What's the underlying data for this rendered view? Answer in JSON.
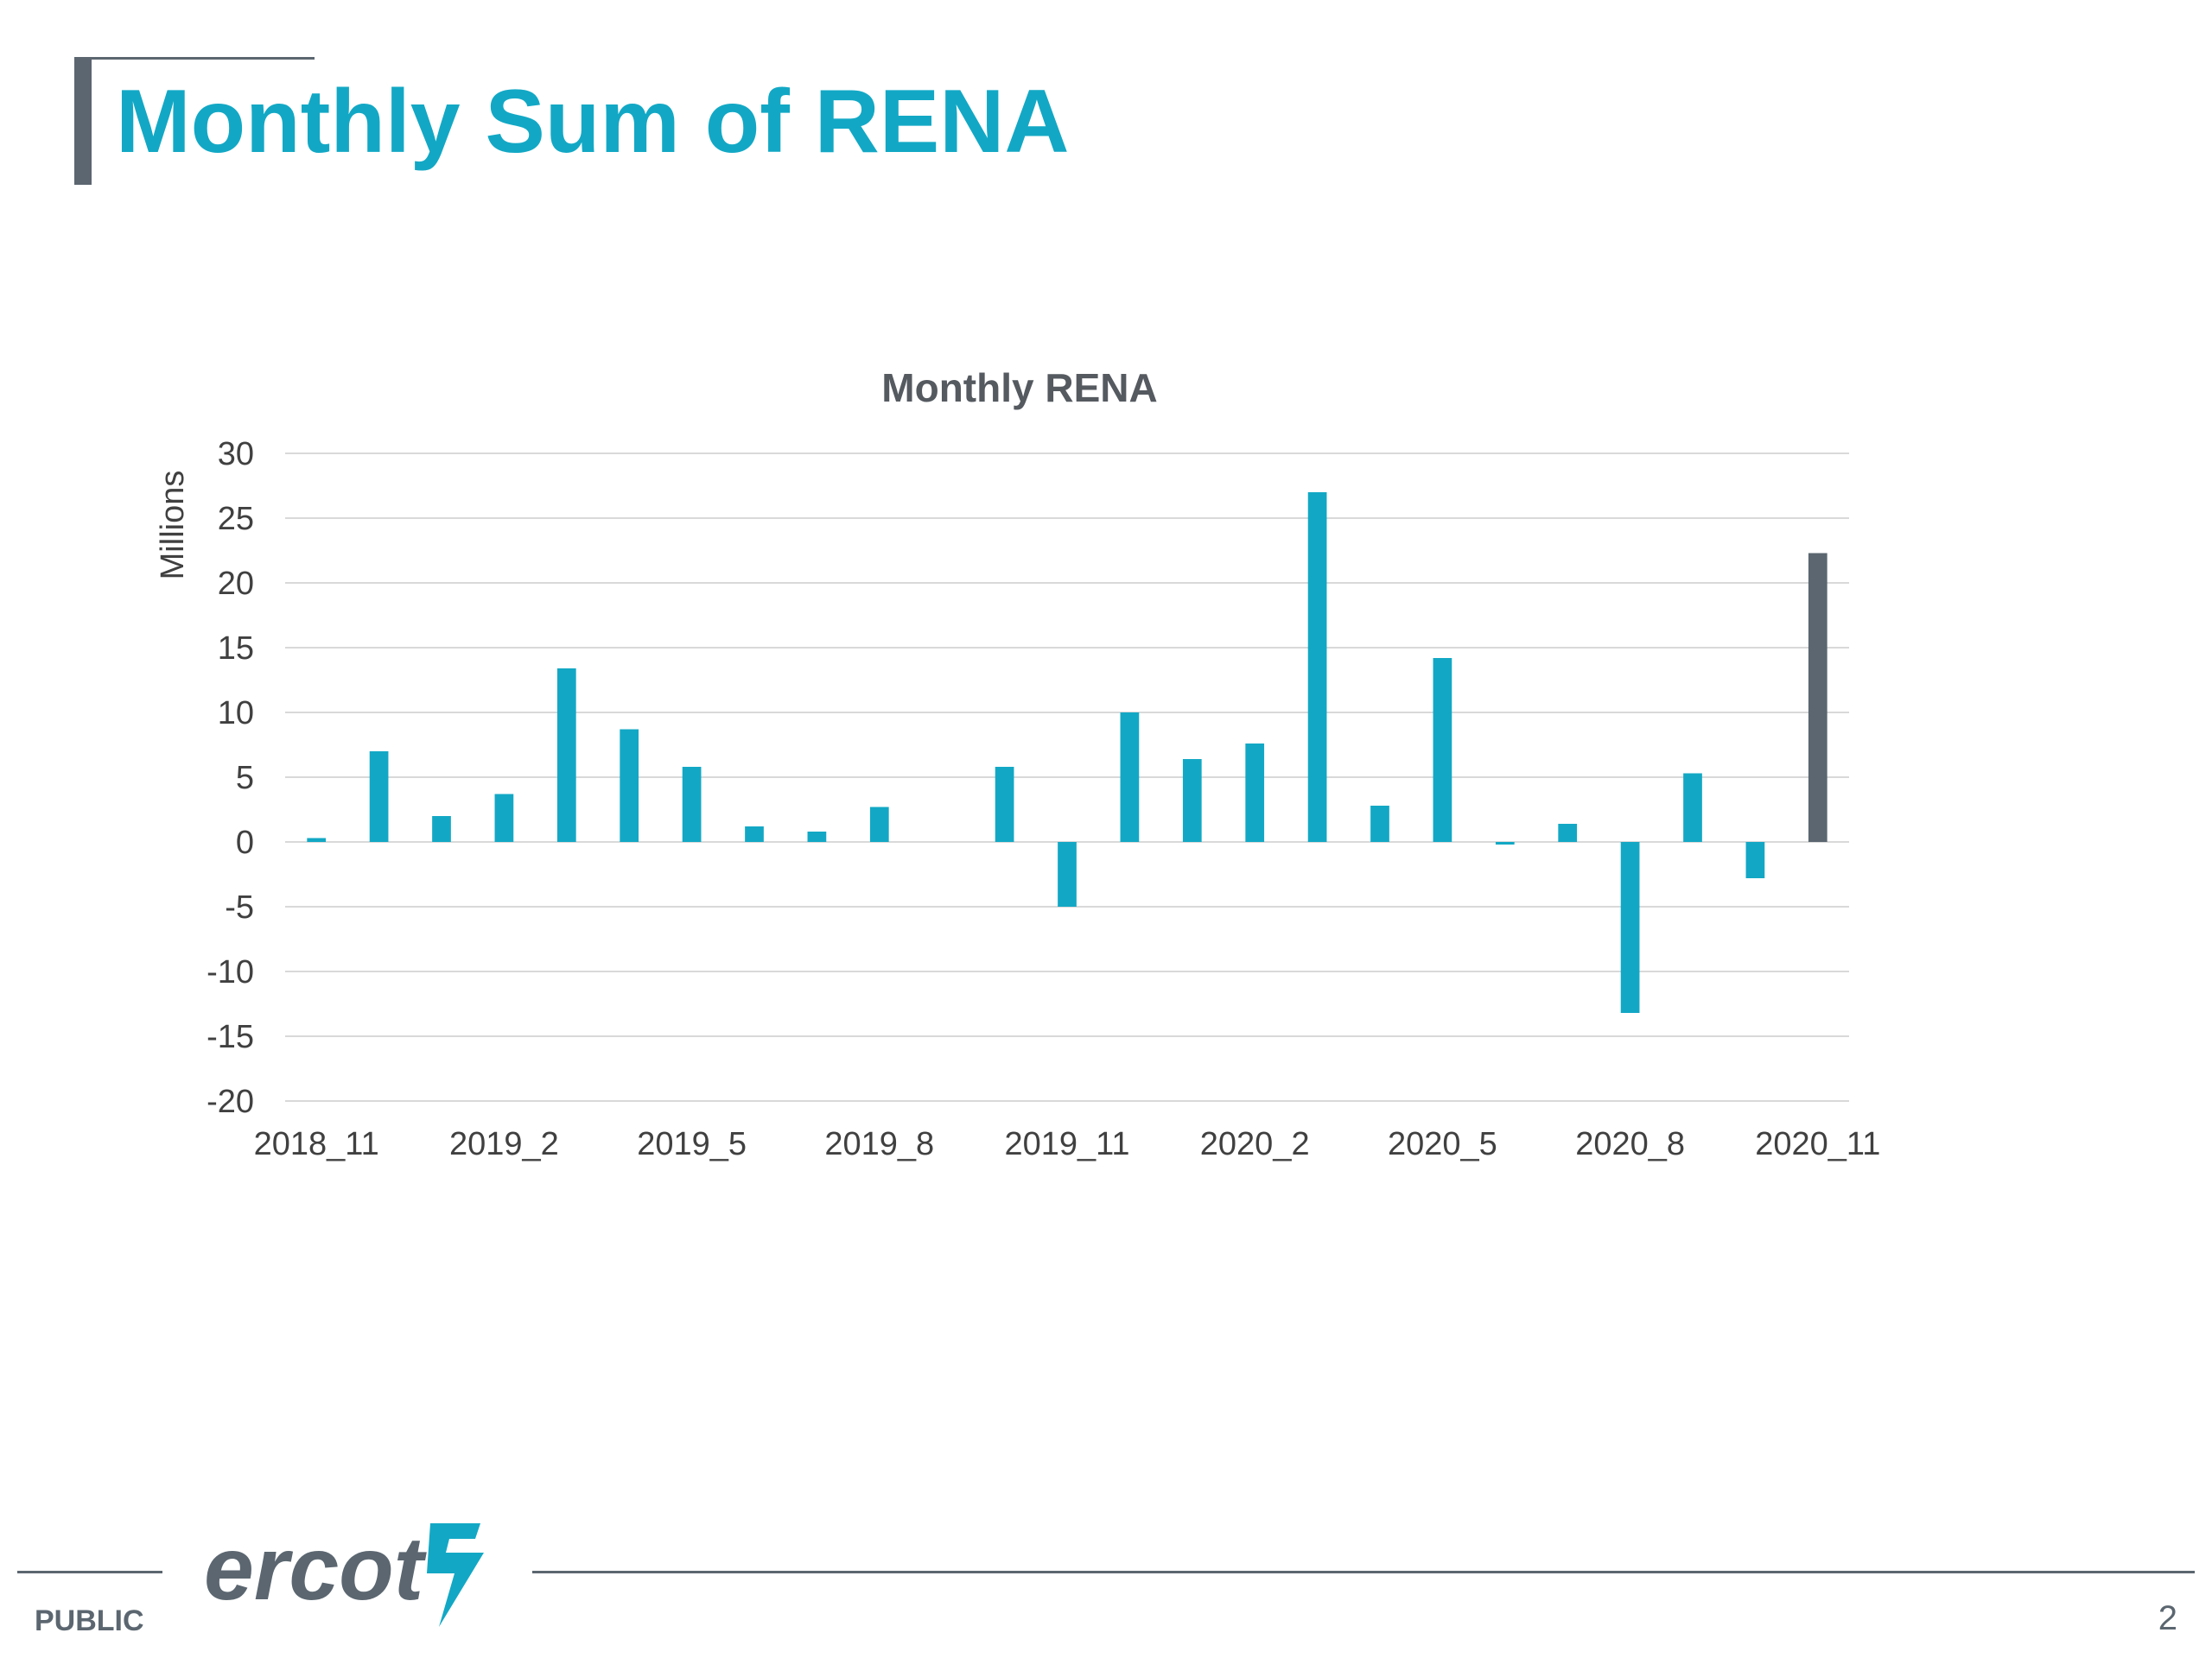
{
  "slide": {
    "title": "Monthly Sum of RENA",
    "classification": "PUBLIC",
    "page_number": "2",
    "logo_text": "ercot"
  },
  "colors": {
    "accent": "#12a8c5",
    "highlight": "#5b6670",
    "grid": "#d9d9d9",
    "text": "#404040"
  },
  "chart_data": {
    "type": "bar",
    "title": "Monthly RENA",
    "ylabel": "Millions",
    "xlabel": "",
    "ylim": [
      -20,
      30
    ],
    "yticks": [
      30,
      25,
      20,
      15,
      10,
      5,
      0,
      -5,
      -10,
      -15,
      -20
    ],
    "grid": true,
    "legend": "none",
    "categories": [
      "2018_11",
      "2018_12",
      "2019_1",
      "2019_2",
      "2019_3",
      "2019_4",
      "2019_5",
      "2019_6",
      "2019_7",
      "2019_8",
      "2019_9",
      "2019_10",
      "2019_11",
      "2019_12",
      "2020_1",
      "2020_2",
      "2020_3",
      "2020_4",
      "2020_5",
      "2020_6",
      "2020_7",
      "2020_8",
      "2020_9",
      "2020_10",
      "2020_11"
    ],
    "x_tick_labels": [
      "2018_11",
      "2019_2",
      "2019_5",
      "2019_8",
      "2019_11",
      "2020_2",
      "2020_5",
      "2020_8",
      "2020_11"
    ],
    "values": [
      0.3,
      7,
      2,
      3.7,
      13.4,
      8.7,
      5.8,
      1.2,
      0.8,
      2.7,
      0,
      5.8,
      -5,
      10,
      6.4,
      7.6,
      27,
      2.8,
      14.2,
      -0.2,
      1.4,
      -13.2,
      5.3,
      -2.8,
      22.3
    ],
    "highlighted_category": "2020_11"
  }
}
